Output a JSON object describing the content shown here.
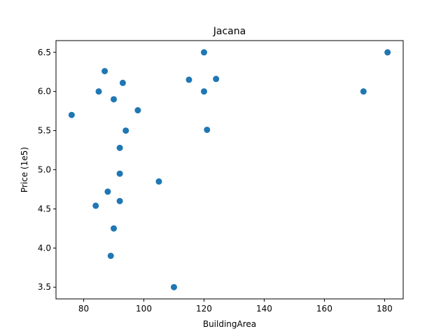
{
  "chart_data": {
    "type": "scatter",
    "title": "Jacana",
    "xlabel": "BuildingArea",
    "ylabel": "Price (1e5)",
    "xlim": [
      70.8,
      186.2
    ],
    "ylim": [
      3.35,
      6.65
    ],
    "xticks": [
      80,
      100,
      120,
      140,
      160,
      180
    ],
    "xtick_labels": [
      "80",
      "100",
      "120",
      "140",
      "160",
      "180"
    ],
    "yticks": [
      3.5,
      4.0,
      4.5,
      5.0,
      5.5,
      6.0,
      6.5
    ],
    "ytick_labels": [
      "3.5",
      "4.0",
      "4.5",
      "5.0",
      "5.5",
      "6.0",
      "6.5"
    ],
    "grid": false,
    "color": "#1f77b4",
    "series": [
      {
        "points": [
          {
            "x": 76,
            "y": 5.7
          },
          {
            "x": 84,
            "y": 4.54
          },
          {
            "x": 85,
            "y": 6.0
          },
          {
            "x": 87,
            "y": 6.26
          },
          {
            "x": 88,
            "y": 4.72
          },
          {
            "x": 89,
            "y": 3.9
          },
          {
            "x": 90,
            "y": 5.9
          },
          {
            "x": 90,
            "y": 4.25
          },
          {
            "x": 92,
            "y": 5.28
          },
          {
            "x": 92,
            "y": 4.95
          },
          {
            "x": 92,
            "y": 4.6
          },
          {
            "x": 93,
            "y": 6.11
          },
          {
            "x": 94,
            "y": 5.5
          },
          {
            "x": 98,
            "y": 5.76
          },
          {
            "x": 105,
            "y": 4.85
          },
          {
            "x": 110,
            "y": 3.5
          },
          {
            "x": 115,
            "y": 6.15
          },
          {
            "x": 120,
            "y": 6.5
          },
          {
            "x": 120,
            "y": 6.0
          },
          {
            "x": 121,
            "y": 5.51
          },
          {
            "x": 124,
            "y": 6.16
          },
          {
            "x": 173,
            "y": 6.0
          },
          {
            "x": 181,
            "y": 6.5
          }
        ]
      }
    ]
  }
}
